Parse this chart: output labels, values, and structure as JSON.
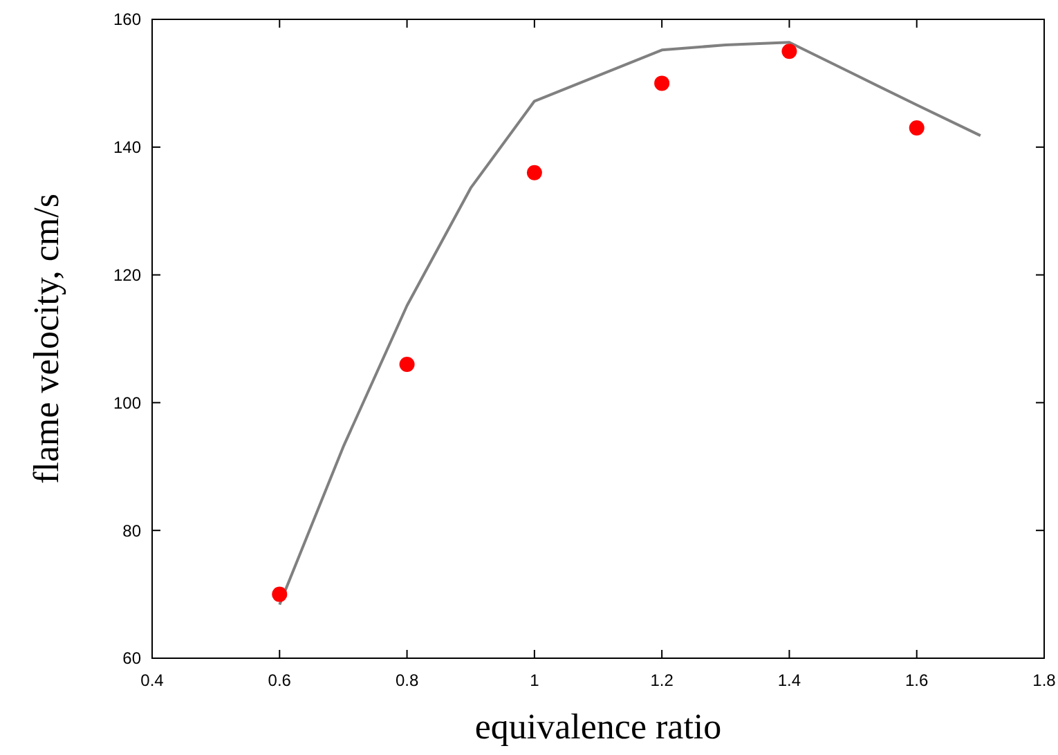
{
  "chart_data": {
    "type": "scatter",
    "xlabel": "equivalence ratio",
    "ylabel": "flame velocity, cm/s",
    "xlim": [
      0.4,
      1.8
    ],
    "xticks": [
      0.4,
      0.6,
      0.8,
      1,
      1.2,
      1.4,
      1.6,
      1.8
    ],
    "ylim": [
      60,
      160
    ],
    "yticks": [
      60,
      80,
      100,
      120,
      140,
      160
    ],
    "grid": false,
    "series": [
      {
        "type": "line",
        "color": "#808080",
        "marker": "none",
        "line_style": "solid",
        "x": [
          0.6,
          0.7,
          0.8,
          0.9,
          1.0,
          1.2,
          1.3,
          1.4,
          1.5,
          1.6,
          1.7
        ],
        "values": [
          68.4,
          93.1,
          115.2,
          133.6,
          147.2,
          155.2,
          156.0,
          156.4,
          151.5,
          146.6,
          141.8
        ]
      },
      {
        "color": "#ff0000",
        "marker": "circle",
        "x": [
          0.6,
          0.8,
          1.0,
          1.2,
          1.4,
          1.6
        ],
        "values": [
          70,
          106,
          136,
          150,
          155,
          143
        ]
      }
    ]
  }
}
